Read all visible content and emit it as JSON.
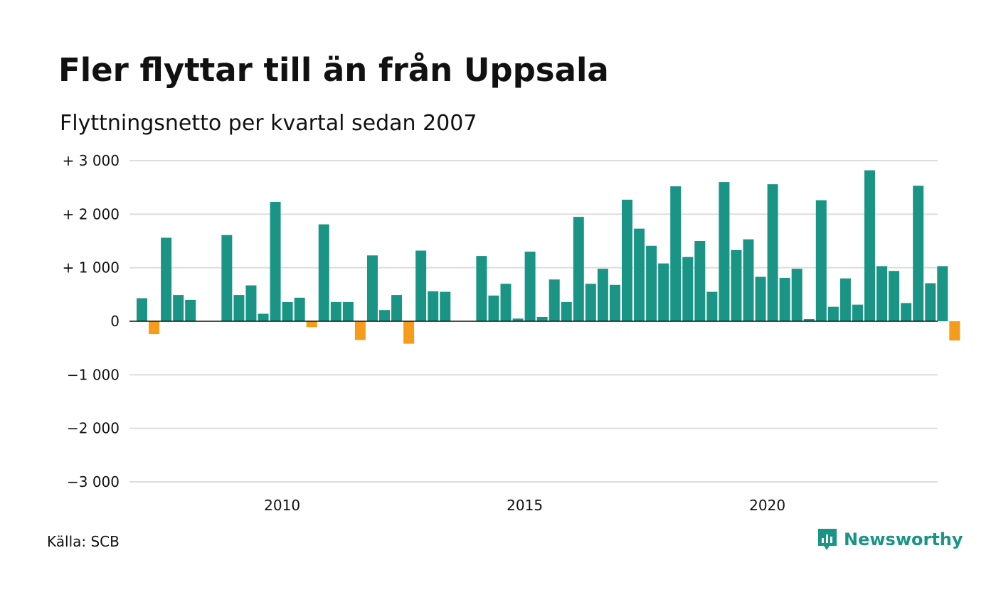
{
  "title": "Fler flyttar till än från Uppsala",
  "subtitle": "Flyttningsnetto per kvartal sedan 2007",
  "source": "Källa: SCB",
  "brand": "Newsworthy",
  "colors": {
    "positive": "#1a9585",
    "negative": "#f59d1b",
    "grid": "#dddddd",
    "brand": "#1a9585"
  },
  "chart_data": {
    "type": "bar",
    "title": "Fler flyttar till än från Uppsala",
    "subtitle": "Flyttningsnetto per kvartal sedan 2007",
    "ylim": [
      -3000,
      3000
    ],
    "yticks": [
      3000,
      2000,
      1000,
      0,
      -1000,
      -2000,
      -3000
    ],
    "ytick_labels": [
      "+ 3 000",
      "+ 2 000",
      "+ 1 000",
      "0",
      "−1 000",
      "−2 000",
      "−3 000"
    ],
    "xtick_labels": [
      "2010",
      "2015",
      "2020"
    ],
    "xticks_at_period_index": [
      12,
      32,
      52
    ],
    "grid": true,
    "categories": [
      "2007 K1",
      "2007 K2",
      "2007 K3",
      "2007 K4",
      "2008 K1",
      "2008 K2",
      "2008 K3",
      "2008 K4",
      "2009 K1",
      "2009 K2",
      "2009 K3",
      "2009 K4",
      "2010 K1",
      "2010 K2",
      "2010 K3",
      "2010 K4",
      "2011 K1",
      "2011 K2",
      "2011 K3",
      "2011 K4",
      "2012 K1",
      "2012 K2",
      "2012 K3",
      "2012 K4",
      "2013 K1",
      "2013 K2",
      "2013 K3",
      "2013 K4",
      "2014 K1",
      "2014 K2",
      "2014 K3",
      "2014 K4",
      "2015 K1",
      "2015 K2",
      "2015 K3",
      "2015 K4",
      "2016 K1",
      "2016 K2",
      "2016 K3",
      "2016 K4",
      "2017 K1",
      "2017 K2",
      "2017 K3",
      "2017 K4",
      "2018 K1",
      "2018 K2",
      "2018 K3",
      "2018 K4",
      "2019 K1",
      "2019 K2",
      "2019 K3",
      "2019 K4",
      "2020 K1",
      "2020 K2",
      "2020 K3",
      "2020 K4",
      "2021 K1",
      "2021 K2",
      "2021 K3",
      "2021 K4",
      "2022 K1",
      "2022 K2",
      "2022 K3",
      "2022 K4",
      "2023 K1",
      "2023 K2",
      "2023 K3",
      "2023 K4"
    ],
    "values": [
      430,
      -240,
      1560,
      490,
      400,
      0,
      0,
      1610,
      490,
      670,
      140,
      2230,
      360,
      440,
      -110,
      1810,
      360,
      360,
      -350,
      1230,
      210,
      490,
      -420,
      1320,
      560,
      550,
      0,
      0,
      1220,
      480,
      700,
      50,
      1300,
      80,
      780,
      360,
      1950,
      700,
      980,
      680,
      2270,
      1730,
      1410,
      1080,
      2520,
      1200,
      1500,
      550,
      2600,
      1330,
      1530,
      830,
      2560,
      810,
      980,
      40,
      2260,
      270,
      800,
      310,
      2820,
      1030,
      940,
      340,
      2530,
      710,
      1030,
      -360
    ]
  }
}
